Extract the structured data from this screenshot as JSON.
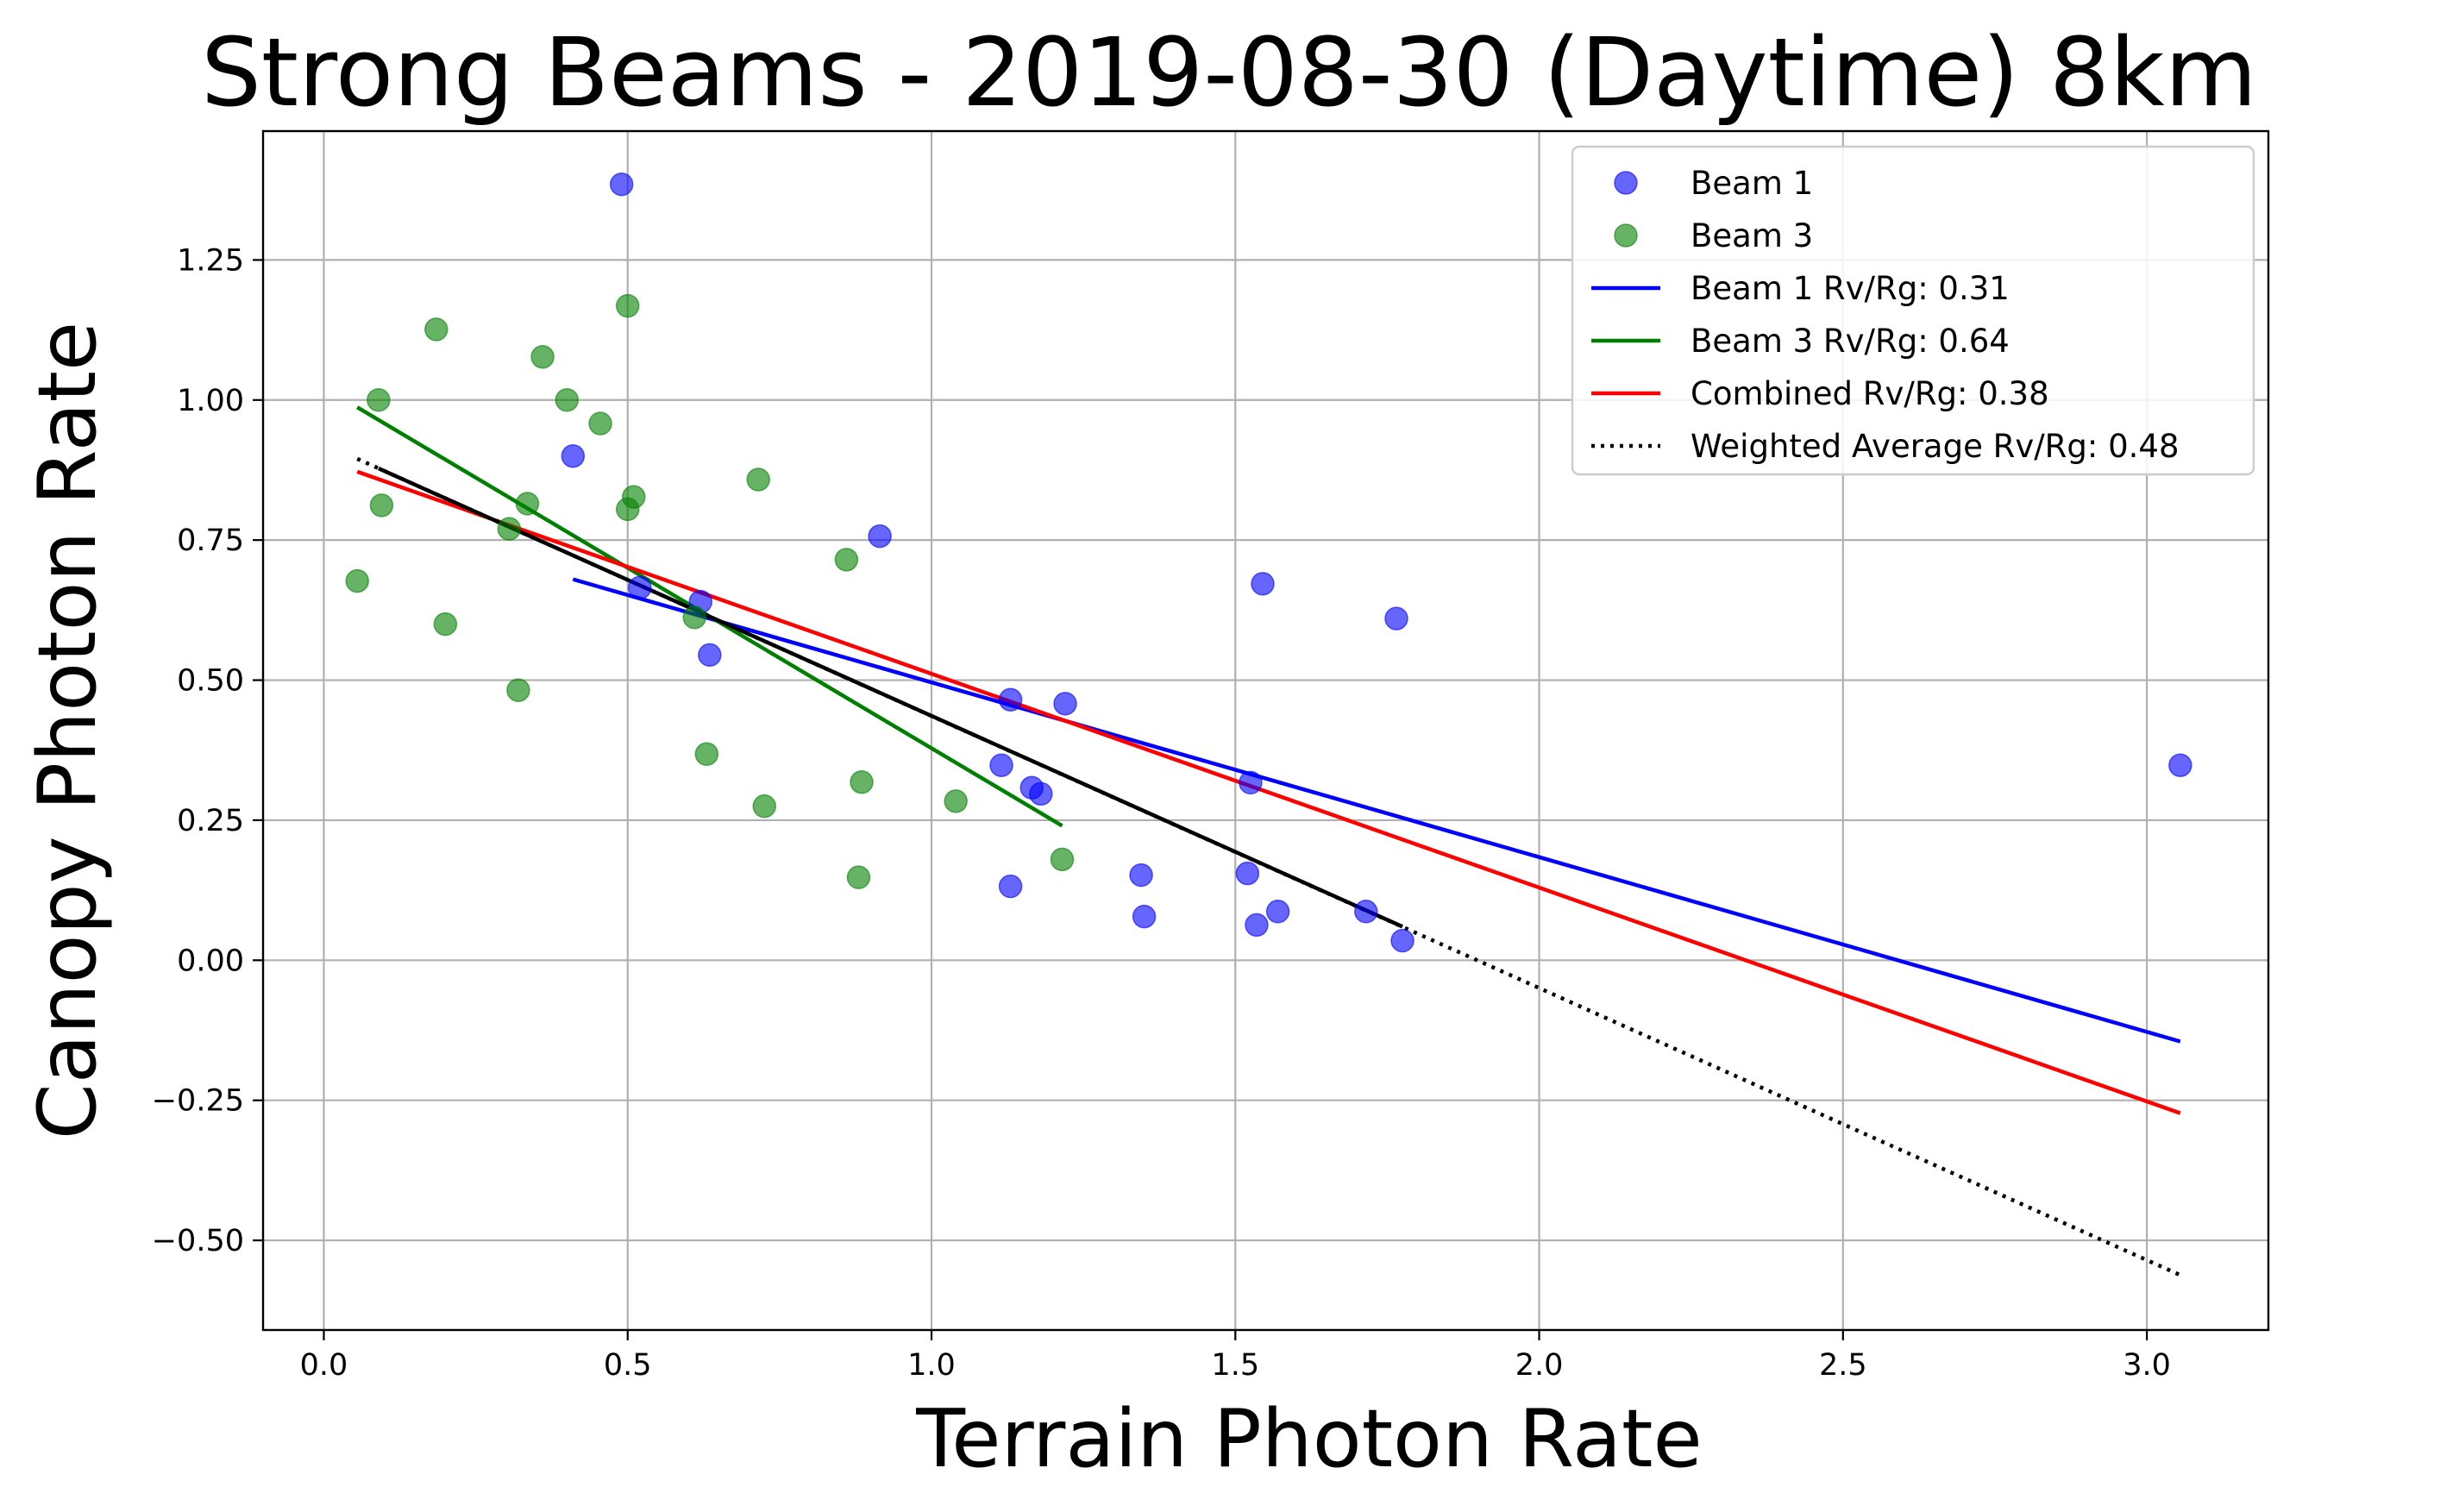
{
  "chart_data": {
    "type": "scatter",
    "title": "Strong Beams - 2019-08-30 (Daytime) 8km",
    "xlabel": "Terrain Photon Rate",
    "ylabel": "Canopy Photon Rate",
    "xlim": [
      -0.1,
      3.2
    ],
    "ylim": [
      -0.66,
      1.48
    ],
    "xticks": [
      0.0,
      0.5,
      1.0,
      1.5,
      2.0,
      2.5,
      3.0
    ],
    "xtick_labels": [
      "0.0",
      "0.5",
      "1.0",
      "1.5",
      "2.0",
      "2.5",
      "3.0"
    ],
    "yticks": [
      -0.5,
      -0.25,
      0.0,
      0.25,
      0.5,
      0.75,
      1.0,
      1.25
    ],
    "ytick_labels": [
      "−0.50",
      "−0.25",
      "0.00",
      "0.25",
      "0.50",
      "0.75",
      "1.00",
      "1.25"
    ],
    "grid": true,
    "legend_position": "top-right",
    "series": [
      {
        "name": "Beam 1",
        "kind": "scatter",
        "color": "#0000ff",
        "points": [
          [
            0.49,
            1.385
          ],
          [
            0.41,
            0.9
          ],
          [
            0.915,
            0.757
          ],
          [
            0.52,
            0.665
          ],
          [
            0.62,
            0.64
          ],
          [
            0.635,
            0.545
          ],
          [
            1.13,
            0.465
          ],
          [
            1.22,
            0.458
          ],
          [
            1.115,
            0.348
          ],
          [
            1.165,
            0.308
          ],
          [
            1.18,
            0.297
          ],
          [
            1.13,
            0.132
          ],
          [
            1.345,
            0.152
          ],
          [
            1.35,
            0.078
          ],
          [
            1.52,
            0.155
          ],
          [
            1.525,
            0.317
          ],
          [
            1.545,
            0.672
          ],
          [
            1.765,
            0.61
          ],
          [
            1.535,
            0.063
          ],
          [
            1.57,
            0.087
          ],
          [
            1.715,
            0.087
          ],
          [
            1.775,
            0.035
          ],
          [
            3.055,
            0.348
          ]
        ]
      },
      {
        "name": "Beam 3",
        "kind": "scatter",
        "color": "#008000",
        "points": [
          [
            0.055,
            0.677
          ],
          [
            0.09,
            1.0
          ],
          [
            0.095,
            0.812
          ],
          [
            0.185,
            1.126
          ],
          [
            0.2,
            0.6
          ],
          [
            0.305,
            0.77
          ],
          [
            0.32,
            0.482
          ],
          [
            0.335,
            0.815
          ],
          [
            0.36,
            1.077
          ],
          [
            0.4,
            1.0
          ],
          [
            0.455,
            0.958
          ],
          [
            0.5,
            1.168
          ],
          [
            0.5,
            0.805
          ],
          [
            0.51,
            0.827
          ],
          [
            0.61,
            0.612
          ],
          [
            0.63,
            0.368
          ],
          [
            0.715,
            0.858
          ],
          [
            0.725,
            0.275
          ],
          [
            0.86,
            0.715
          ],
          [
            0.88,
            0.148
          ],
          [
            0.885,
            0.318
          ],
          [
            1.04,
            0.284
          ],
          [
            1.215,
            0.18
          ]
        ]
      },
      {
        "name": "Beam 1 Rv/Rg: 0.31",
        "kind": "line",
        "color": "#0000ff",
        "points": [
          [
            0.41,
            0.68
          ],
          [
            3.055,
            -0.145
          ]
        ]
      },
      {
        "name": "Beam 3 Rv/Rg: 0.64",
        "kind": "line",
        "color": "#008000",
        "points": [
          [
            0.055,
            0.987
          ],
          [
            1.215,
            0.24
          ]
        ]
      },
      {
        "name": "Combined Rv/Rg: 0.38",
        "kind": "line",
        "color": "#ff0000",
        "points": [
          [
            0.055,
            0.872
          ],
          [
            3.055,
            -0.273
          ]
        ]
      },
      {
        "name": "Weighted Average Rv/Rg: 0.48",
        "kind": "dotted-line",
        "color": "#000000",
        "points": [
          [
            0.055,
            0.895
          ],
          [
            3.055,
            -0.562
          ]
        ]
      },
      {
        "name": "",
        "kind": "line",
        "color": "#000000",
        "points": [
          [
            0.09,
            0.878
          ],
          [
            1.775,
            0.06
          ]
        ]
      }
    ]
  }
}
